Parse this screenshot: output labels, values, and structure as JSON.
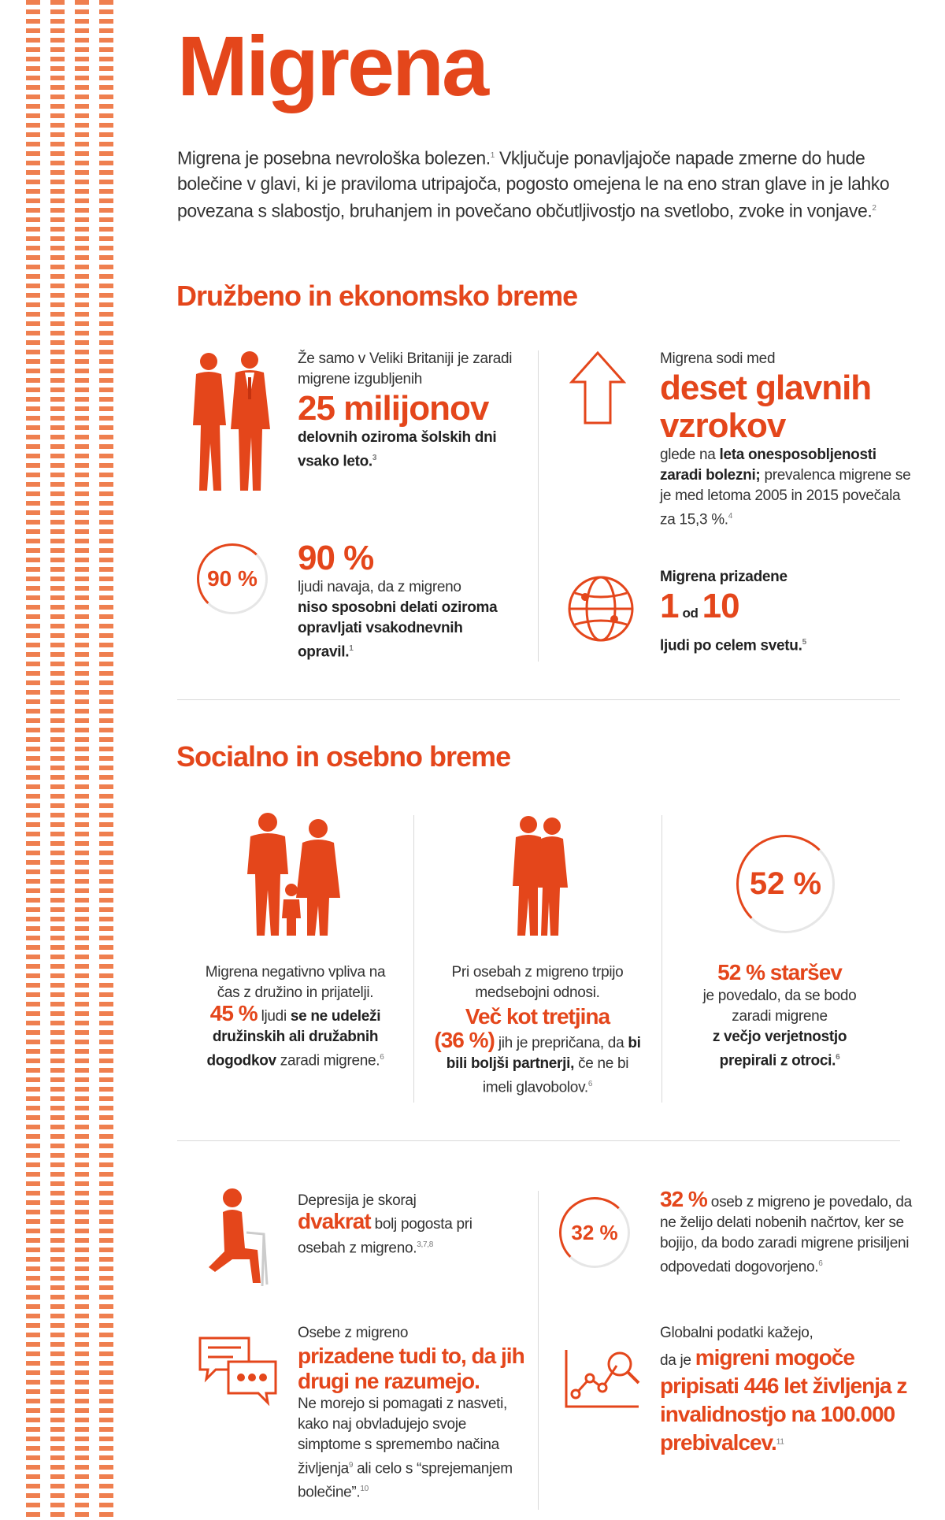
{
  "title": "Migrena",
  "intro": {
    "text1": "Migrena je posebna nevrološka bolezen.",
    "sup1": "1",
    "text2": " Vključuje ponavljajoče napade zmerne do hude bolečine v glavi, ki je praviloma utripajoča, pogosto omejena le na eno stran glave in je lahko povezana s slabostjo, bruhanjem in povečano občutljivostjo na svetlobo, zvoke in vonjave.",
    "sup2": "2"
  },
  "section1": {
    "heading": "Družbeno in ekonomsko breme",
    "stat1": {
      "pre": "Že samo v Veliki Britaniji je zaradi migrene izgubljenih",
      "big": "25 milijonov",
      "post": "delovnih oziroma šolskih dni vsako leto.",
      "sup": "3"
    },
    "stat2": {
      "pre": "Migrena sodi med",
      "big": "deset glavnih vzrokov",
      "mid1": "glede na ",
      "bold": "leta onesposobljenosti zaradi bolezni;",
      "post": " prevalenca migrene se je med letoma 2005 in 2015 povečala za 15,3 %.",
      "sup": "4"
    },
    "stat3": {
      "ring": "90 %",
      "big": "90 %",
      "pre": "ljudi navaja, da z migreno",
      "bold": "niso sposobni delati oziroma opravljati vsakodnevnih opravil.",
      "sup": "1"
    },
    "stat4": {
      "bold_pre": "Migrena prizadene",
      "big1": "1",
      "od": "od",
      "big2": "10",
      "post": "ljudi po celem svetu.",
      "sup": "5"
    }
  },
  "section2": {
    "heading": "Socialno in osebno breme",
    "col1": {
      "pre": "Migrena negativno vpliva na čas z družino in prijatelji.",
      "pct": "45 %",
      "mid": " ljudi ",
      "bold1": "se ne udeleži družinskih ali družabnih dogodkov",
      "post": " zaradi migrene.",
      "sup": "6"
    },
    "col2": {
      "pre": "Pri osebah z migreno trpijo medsebojni odnosi.",
      "big": "Več kot tretjina",
      "pct": "(36 %)",
      "mid": " jih je prepričana, da ",
      "bold": "bi bili boljši partnerji,",
      "post": " če ne bi imeli glavobolov.",
      "sup": "6"
    },
    "col3": {
      "ring": "52 %",
      "big": "52 % staršev",
      "pre": "je povedalo, da se bodo zaradi migrene",
      "bold": "z večjo verjetnostjo prepirali z otroci.",
      "sup": "6"
    }
  },
  "section3": {
    "dep": {
      "pre": "Depresija je skoraj",
      "big": "dvakrat",
      "post1": " bolj pogosta pri osebah z migreno.",
      "sup": "3,7,8"
    },
    "plans": {
      "ring": "32 %",
      "big": "32 %",
      "post": " oseb z migreno je povedalo, da ne želijo delati nobenih načrtov, ker se bojijo, da bodo zaradi migrene prisiljeni odpovedati dogovorjeno.",
      "sup": "6"
    },
    "understand": {
      "pre": "Osebe z migreno",
      "big": "prizadene tudi to, da jih drugi ne razumejo.",
      "post": "Ne morejo si pomagati z nasveti, kako naj obvladujejo svoje simptome s spremembo načina življenja",
      "sup1": "9",
      "post2": " ali celo s “sprejemanjem bolečine”.",
      "sup2": "10"
    },
    "global": {
      "pre1": "Globalni podatki kažejo,",
      "pre2": "da je ",
      "big": "migreni mogoče pripisati 446 let življenja z invalidnostjo na 100.000 prebivalcev.",
      "sup": "11"
    }
  },
  "icons": [
    "people-couple-icon",
    "arrow-up-icon",
    "globe-icon",
    "family-icon",
    "elderly-couple-icon",
    "sitting-woman-icon",
    "speech-bubbles-icon",
    "magnify-chart-icon"
  ],
  "colors": {
    "accent": "#e4461b",
    "stripe": "#ef7f4f"
  }
}
